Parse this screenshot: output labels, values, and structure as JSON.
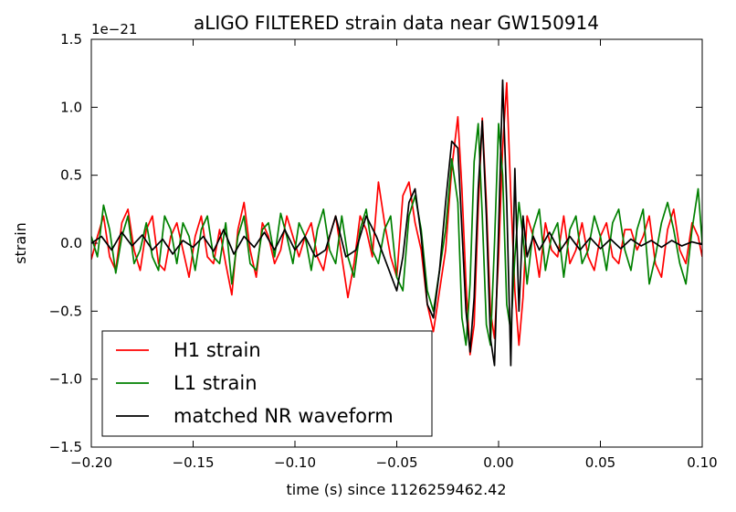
{
  "chart_data": {
    "type": "line",
    "title": "aLIGO FILTERED strain data near GW150914",
    "xlabel": "time (s) since 1126259462.42",
    "ylabel": "strain",
    "offset_text": "1e−21",
    "xlim": [
      -0.2,
      0.1
    ],
    "ylim": [
      -1.5,
      1.5
    ],
    "y_scale_factor": "1e-21",
    "grid": false,
    "legend_position": "lower-left",
    "xticks": [
      -0.2,
      -0.15,
      -0.1,
      -0.05,
      0.0,
      0.05,
      0.1
    ],
    "xtick_labels": [
      "−0.20",
      "−0.15",
      "−0.10",
      "−0.05",
      "0.00",
      "0.05",
      "0.10"
    ],
    "yticks": [
      -1.5,
      -1.0,
      -0.5,
      0.0,
      0.5,
      1.0,
      1.5
    ],
    "ytick_labels": [
      "−1.5",
      "−1.0",
      "−0.5",
      "0.0",
      "0.5",
      "1.0",
      "1.5"
    ],
    "series": [
      {
        "name": "H1 strain",
        "color": "#ff0000",
        "x": [
          -0.2,
          -0.197,
          -0.194,
          -0.191,
          -0.188,
          -0.185,
          -0.182,
          -0.179,
          -0.176,
          -0.173,
          -0.17,
          -0.167,
          -0.164,
          -0.161,
          -0.158,
          -0.155,
          -0.152,
          -0.149,
          -0.146,
          -0.143,
          -0.14,
          -0.137,
          -0.134,
          -0.131,
          -0.128,
          -0.125,
          -0.122,
          -0.119,
          -0.116,
          -0.113,
          -0.11,
          -0.107,
          -0.104,
          -0.101,
          -0.098,
          -0.095,
          -0.092,
          -0.089,
          -0.086,
          -0.083,
          -0.08,
          -0.077,
          -0.074,
          -0.071,
          -0.068,
          -0.065,
          -0.062,
          -0.059,
          -0.056,
          -0.053,
          -0.05,
          -0.047,
          -0.044,
          -0.041,
          -0.038,
          -0.035,
          -0.032,
          -0.029,
          -0.026,
          -0.023,
          -0.02,
          -0.018,
          -0.016,
          -0.014,
          -0.012,
          -0.01,
          -0.008,
          -0.006,
          -0.004,
          -0.002,
          0.0,
          0.002,
          0.004,
          0.006,
          0.008,
          0.01,
          0.012,
          0.014,
          0.017,
          0.02,
          0.023,
          0.026,
          0.029,
          0.032,
          0.035,
          0.038,
          0.041,
          0.044,
          0.047,
          0.05,
          0.053,
          0.056,
          0.059,
          0.062,
          0.065,
          0.068,
          0.071,
          0.074,
          0.077,
          0.08,
          0.083,
          0.086,
          0.089,
          0.092,
          0.095,
          0.098,
          0.1
        ],
        "y": [
          -0.12,
          0.05,
          0.2,
          -0.1,
          -0.2,
          0.15,
          0.25,
          -0.05,
          -0.2,
          0.1,
          0.2,
          -0.15,
          -0.2,
          0.05,
          0.15,
          -0.05,
          -0.25,
          0.05,
          0.2,
          -0.1,
          -0.15,
          0.1,
          -0.15,
          -0.38,
          0.1,
          0.3,
          -0.05,
          -0.25,
          0.15,
          0.05,
          -0.15,
          -0.05,
          0.2,
          0.05,
          -0.1,
          0.05,
          0.15,
          -0.1,
          -0.2,
          0.05,
          0.2,
          -0.1,
          -0.4,
          -0.15,
          0.2,
          0.1,
          -0.1,
          0.45,
          0.15,
          -0.1,
          -0.25,
          0.35,
          0.45,
          0.15,
          -0.05,
          -0.45,
          -0.65,
          -0.35,
          -0.05,
          0.55,
          0.93,
          0.4,
          -0.3,
          -0.82,
          -0.6,
          0.25,
          0.92,
          0.3,
          -0.5,
          -0.7,
          -0.1,
          0.7,
          1.18,
          0.35,
          -0.35,
          -0.75,
          -0.4,
          0.2,
          0.05,
          -0.25,
          0.15,
          -0.05,
          -0.1,
          0.2,
          -0.15,
          -0.05,
          0.15,
          -0.1,
          -0.2,
          0.05,
          0.15,
          -0.1,
          -0.15,
          0.1,
          0.1,
          -0.05,
          0.05,
          0.2,
          -0.15,
          -0.25,
          0.1,
          0.25,
          -0.05,
          -0.15,
          0.15,
          0.05,
          -0.1
        ]
      },
      {
        "name": "L1 strain",
        "color": "#008000",
        "x": [
          -0.2,
          -0.197,
          -0.194,
          -0.191,
          -0.188,
          -0.185,
          -0.182,
          -0.179,
          -0.176,
          -0.173,
          -0.17,
          -0.167,
          -0.164,
          -0.161,
          -0.158,
          -0.155,
          -0.152,
          -0.149,
          -0.146,
          -0.143,
          -0.14,
          -0.137,
          -0.134,
          -0.131,
          -0.128,
          -0.125,
          -0.122,
          -0.119,
          -0.116,
          -0.113,
          -0.11,
          -0.107,
          -0.104,
          -0.101,
          -0.098,
          -0.095,
          -0.092,
          -0.089,
          -0.086,
          -0.083,
          -0.08,
          -0.077,
          -0.074,
          -0.071,
          -0.068,
          -0.065,
          -0.062,
          -0.059,
          -0.056,
          -0.053,
          -0.05,
          -0.047,
          -0.044,
          -0.041,
          -0.038,
          -0.035,
          -0.032,
          -0.029,
          -0.026,
          -0.023,
          -0.02,
          -0.018,
          -0.016,
          -0.014,
          -0.012,
          -0.01,
          -0.008,
          -0.006,
          -0.004,
          -0.002,
          0.0,
          0.002,
          0.004,
          0.006,
          0.008,
          0.01,
          0.012,
          0.014,
          0.017,
          0.02,
          0.023,
          0.026,
          0.029,
          0.032,
          0.035,
          0.038,
          0.041,
          0.044,
          0.047,
          0.05,
          0.053,
          0.056,
          0.059,
          0.062,
          0.065,
          0.068,
          0.071,
          0.074,
          0.077,
          0.08,
          0.083,
          0.086,
          0.089,
          0.092,
          0.095,
          0.098,
          0.1
        ],
        "y": [
          0.05,
          -0.1,
          0.28,
          0.1,
          -0.22,
          0.05,
          0.2,
          -0.15,
          -0.05,
          0.15,
          -0.1,
          -0.2,
          0.2,
          0.1,
          -0.15,
          0.15,
          0.05,
          -0.2,
          0.1,
          0.2,
          -0.1,
          -0.15,
          0.15,
          -0.3,
          0.05,
          0.2,
          -0.15,
          -0.2,
          0.1,
          0.15,
          -0.1,
          0.22,
          0.05,
          -0.15,
          0.15,
          0.05,
          -0.2,
          0.1,
          0.25,
          -0.05,
          -0.15,
          0.2,
          -0.1,
          -0.25,
          0.1,
          0.25,
          -0.05,
          -0.15,
          0.1,
          0.2,
          -0.25,
          -0.35,
          0.2,
          0.35,
          0.1,
          -0.35,
          -0.5,
          -0.2,
          0.1,
          0.62,
          0.3,
          -0.55,
          -0.75,
          -0.3,
          0.6,
          0.88,
          0.2,
          -0.6,
          -0.75,
          0.0,
          0.88,
          0.5,
          -0.45,
          -0.65,
          -0.1,
          0.3,
          0.05,
          -0.3,
          0.1,
          0.25,
          -0.2,
          0.05,
          0.15,
          -0.25,
          0.1,
          0.2,
          -0.15,
          -0.05,
          0.2,
          0.05,
          -0.2,
          0.15,
          0.25,
          -0.05,
          -0.2,
          0.1,
          0.25,
          -0.3,
          -0.1,
          0.15,
          0.3,
          0.1,
          -0.15,
          -0.3,
          0.1,
          0.4,
          0.0
        ]
      },
      {
        "name": "matched NR waveform",
        "color": "#000000",
        "x": [
          -0.2,
          -0.195,
          -0.19,
          -0.185,
          -0.18,
          -0.175,
          -0.17,
          -0.165,
          -0.16,
          -0.155,
          -0.15,
          -0.145,
          -0.14,
          -0.135,
          -0.13,
          -0.125,
          -0.12,
          -0.115,
          -0.11,
          -0.105,
          -0.1,
          -0.095,
          -0.09,
          -0.085,
          -0.08,
          -0.075,
          -0.07,
          -0.065,
          -0.06,
          -0.055,
          -0.05,
          -0.047,
          -0.044,
          -0.041,
          -0.038,
          -0.035,
          -0.032,
          -0.029,
          -0.026,
          -0.023,
          -0.02,
          -0.018,
          -0.016,
          -0.014,
          -0.012,
          -0.01,
          -0.008,
          -0.006,
          -0.004,
          -0.002,
          0.0,
          0.002,
          0.004,
          0.006,
          0.008,
          0.01,
          0.012,
          0.014,
          0.017,
          0.02,
          0.025,
          0.03,
          0.035,
          0.04,
          0.045,
          0.05,
          0.055,
          0.06,
          0.065,
          0.07,
          0.075,
          0.08,
          0.085,
          0.09,
          0.095,
          0.1
        ],
        "y": [
          0.0,
          0.05,
          -0.05,
          0.08,
          -0.02,
          0.06,
          -0.05,
          0.03,
          -0.08,
          0.02,
          -0.03,
          0.05,
          -0.06,
          0.1,
          -0.08,
          0.05,
          -0.03,
          0.08,
          -0.05,
          0.1,
          -0.05,
          0.05,
          -0.1,
          -0.05,
          0.2,
          -0.1,
          -0.05,
          0.2,
          0.05,
          -0.15,
          -0.35,
          -0.1,
          0.3,
          0.4,
          0.05,
          -0.45,
          -0.55,
          -0.2,
          0.3,
          0.75,
          0.7,
          0.1,
          -0.5,
          -0.8,
          -0.4,
          0.4,
          0.9,
          0.2,
          -0.7,
          -0.9,
          0.1,
          1.2,
          0.3,
          -0.9,
          0.55,
          -0.5,
          0.2,
          -0.1,
          0.05,
          -0.05,
          0.08,
          -0.06,
          0.05,
          -0.05,
          0.04,
          -0.04,
          0.03,
          -0.04,
          0.03,
          -0.02,
          0.02,
          -0.03,
          0.02,
          -0.02,
          0.01,
          -0.01
        ]
      }
    ]
  }
}
